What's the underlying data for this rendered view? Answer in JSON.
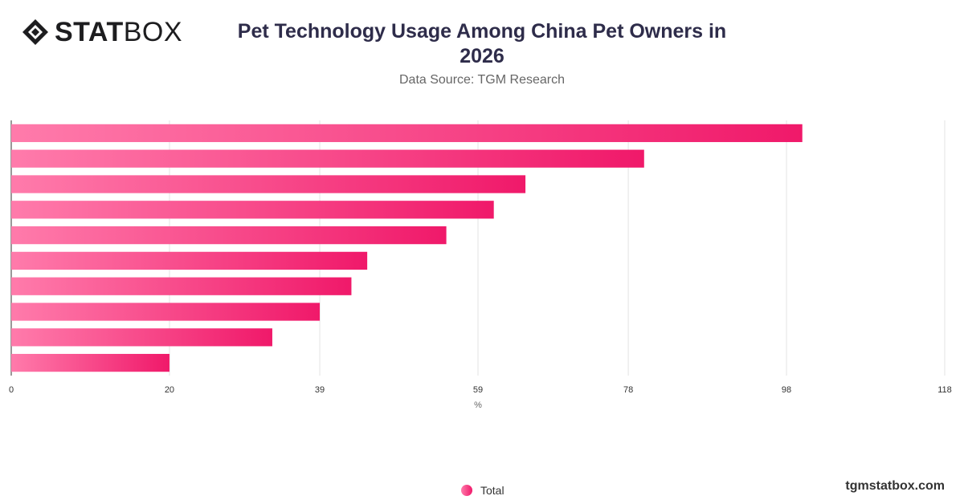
{
  "brand": {
    "name_bold": "STAT",
    "name_light": "BOX",
    "site": "tgmstatbox.com"
  },
  "header": {
    "title": "Pet Technology Usage Among China Pet Owners in 2026",
    "subtitle": "Data Source: TGM Research"
  },
  "legend": {
    "label": "Total"
  },
  "colors": {
    "bar_start": "#ff7bab",
    "bar_end": "#f0196a",
    "grid": "#e3e3e3",
    "axis": "#333333"
  },
  "chart_data": {
    "type": "bar",
    "orientation": "horizontal",
    "categories": [
      "",
      "",
      "",
      "",
      "",
      "",
      "",
      "",
      "",
      ""
    ],
    "series": [
      {
        "name": "Total",
        "values": [
          100,
          80,
          65,
          61,
          55,
          45,
          43,
          39,
          33,
          20
        ]
      }
    ],
    "xlabel": "%",
    "xlim": [
      0,
      118
    ],
    "ticks": [
      0,
      20,
      39,
      59,
      78,
      98,
      118
    ],
    "grid": true,
    "legend_position": "bottom-center"
  }
}
